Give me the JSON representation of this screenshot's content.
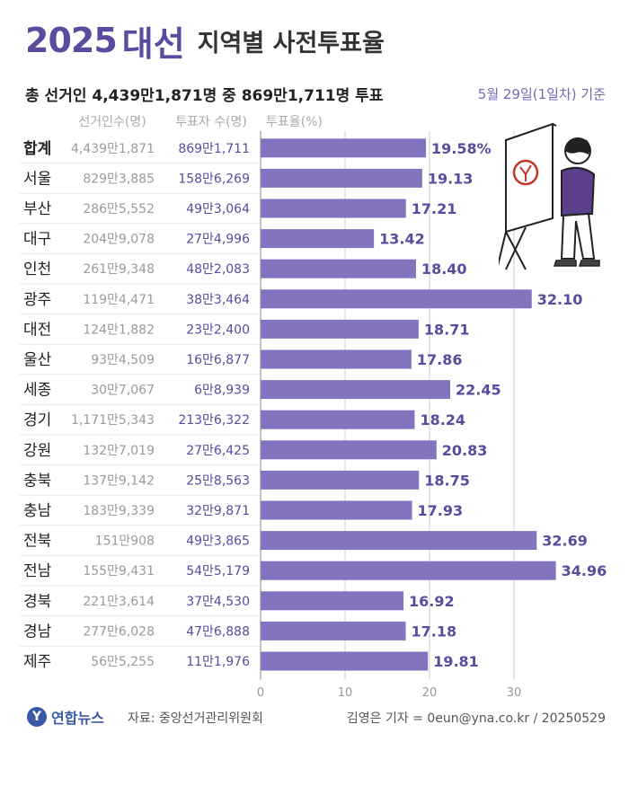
{
  "header": {
    "year": "2025",
    "word": "대선",
    "title": "지역별 사전투표율"
  },
  "summary": "총 선거인 4,439만1,871명 중 869만1,711명 투표",
  "date": "5월 29일(1일차) 기준",
  "footer": {
    "logo": "연합뉴스",
    "source": "자료: 중앙선거관리위원회",
    "credit": "김영은 기자 = 0eun@yna.co.kr / 20250529"
  },
  "colors": {
    "bar": "#8474c0",
    "accent": "#5b4a9e",
    "text": "#222222",
    "muted": "#999999"
  },
  "chart_data": {
    "type": "bar",
    "orientation": "horizontal",
    "column_headers": [
      "선거인수(명)",
      "투표자 수(명)",
      "투표율(%)"
    ],
    "categories": [
      "합계",
      "서울",
      "부산",
      "대구",
      "인천",
      "광주",
      "대전",
      "울산",
      "세종",
      "경기",
      "강원",
      "충북",
      "충남",
      "전북",
      "전남",
      "경북",
      "경남",
      "제주"
    ],
    "electors": [
      "4,439만1,871",
      "829만3,885",
      "286만5,552",
      "204만9,078",
      "261만9,348",
      "119만4,471",
      "124만1,882",
      "93만4,509",
      "30만7,067",
      "1,171만5,343",
      "132만7,019",
      "137만9,142",
      "183만9,339",
      "151만908",
      "155만9,431",
      "221만3,614",
      "277만6,028",
      "56만5,255"
    ],
    "voters": [
      "869만1,711",
      "158만6,269",
      "49만3,064",
      "27만4,996",
      "48만2,083",
      "38만3,464",
      "23만2,400",
      "16만6,877",
      "6만8,939",
      "213만6,322",
      "27만6,425",
      "25만8,563",
      "32만9,871",
      "49만3,865",
      "54만5,179",
      "37만4,530",
      "47만6,888",
      "11만1,976"
    ],
    "values": [
      19.58,
      19.13,
      17.21,
      13.42,
      18.4,
      32.1,
      18.71,
      17.86,
      22.45,
      18.24,
      20.83,
      18.75,
      17.93,
      32.69,
      34.96,
      16.92,
      17.18,
      19.81
    ],
    "value_labels": [
      "19.58%",
      "19.13",
      "17.21",
      "13.42",
      "18.40",
      "32.10",
      "18.71",
      "17.86",
      "22.45",
      "18.24",
      "20.83",
      "18.75",
      "17.93",
      "32.69",
      "34.96",
      "16.92",
      "17.18",
      "19.81"
    ],
    "xlim": [
      0,
      35
    ],
    "xticks": [
      0,
      10,
      20,
      30
    ],
    "xtick_labels": [
      "0",
      "10",
      "20",
      "30"
    ],
    "grid": true
  }
}
